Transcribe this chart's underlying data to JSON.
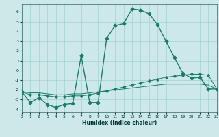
{
  "xlabel": "Humidex (Indice chaleur)",
  "bg_color": "#cce8e8",
  "line_color": "#1a7a6a",
  "grid_color": "#99cccc",
  "series1_x": [
    0,
    1,
    2,
    3,
    4,
    5,
    6,
    7,
    8,
    9,
    10,
    11,
    12,
    13,
    14,
    15,
    16,
    17,
    18,
    19,
    20,
    21,
    22,
    23
  ],
  "series1_y": [
    -2.2,
    -3.3,
    -2.8,
    -3.5,
    -3.8,
    -3.5,
    -3.4,
    1.5,
    -3.3,
    -3.3,
    3.3,
    4.6,
    4.8,
    6.3,
    6.2,
    5.8,
    4.7,
    3.0,
    1.3,
    -0.3,
    -0.8,
    -0.7,
    -1.9,
    -1.9
  ],
  "series2_x": [
    0,
    1,
    2,
    3,
    4,
    5,
    6,
    7,
    8,
    9,
    10,
    11,
    12,
    13,
    14,
    15,
    16,
    17,
    18,
    19,
    20,
    21,
    22,
    23
  ],
  "series2_y": [
    -2.2,
    -2.5,
    -2.5,
    -2.6,
    -2.7,
    -2.7,
    -2.6,
    -2.6,
    -2.5,
    -2.3,
    -2.1,
    -1.9,
    -1.7,
    -1.5,
    -1.3,
    -1.1,
    -0.9,
    -0.7,
    -0.6,
    -0.5,
    -0.4,
    -0.4,
    -0.5,
    -1.9
  ],
  "series3_x": [
    0,
    1,
    2,
    3,
    4,
    5,
    6,
    7,
    8,
    9,
    10,
    11,
    12,
    13,
    14,
    15,
    16,
    17,
    18,
    19,
    20,
    21,
    22,
    23
  ],
  "series3_y": [
    -2.2,
    -2.3,
    -2.3,
    -2.4,
    -2.5,
    -2.5,
    -2.4,
    -2.4,
    -2.3,
    -2.2,
    -2.1,
    -2.0,
    -1.9,
    -1.8,
    -1.7,
    -1.6,
    -1.5,
    -1.4,
    -1.4,
    -1.4,
    -1.4,
    -1.4,
    -1.5,
    -1.9
  ],
  "xlim": [
    0,
    23
  ],
  "ylim": [
    -4.3,
    6.8
  ],
  "yticks": [
    -4,
    -3,
    -2,
    -1,
    0,
    1,
    2,
    3,
    4,
    5,
    6
  ],
  "xticks": [
    0,
    1,
    2,
    3,
    4,
    5,
    6,
    7,
    8,
    9,
    10,
    11,
    12,
    13,
    14,
    15,
    16,
    17,
    18,
    19,
    20,
    21,
    22,
    23
  ]
}
